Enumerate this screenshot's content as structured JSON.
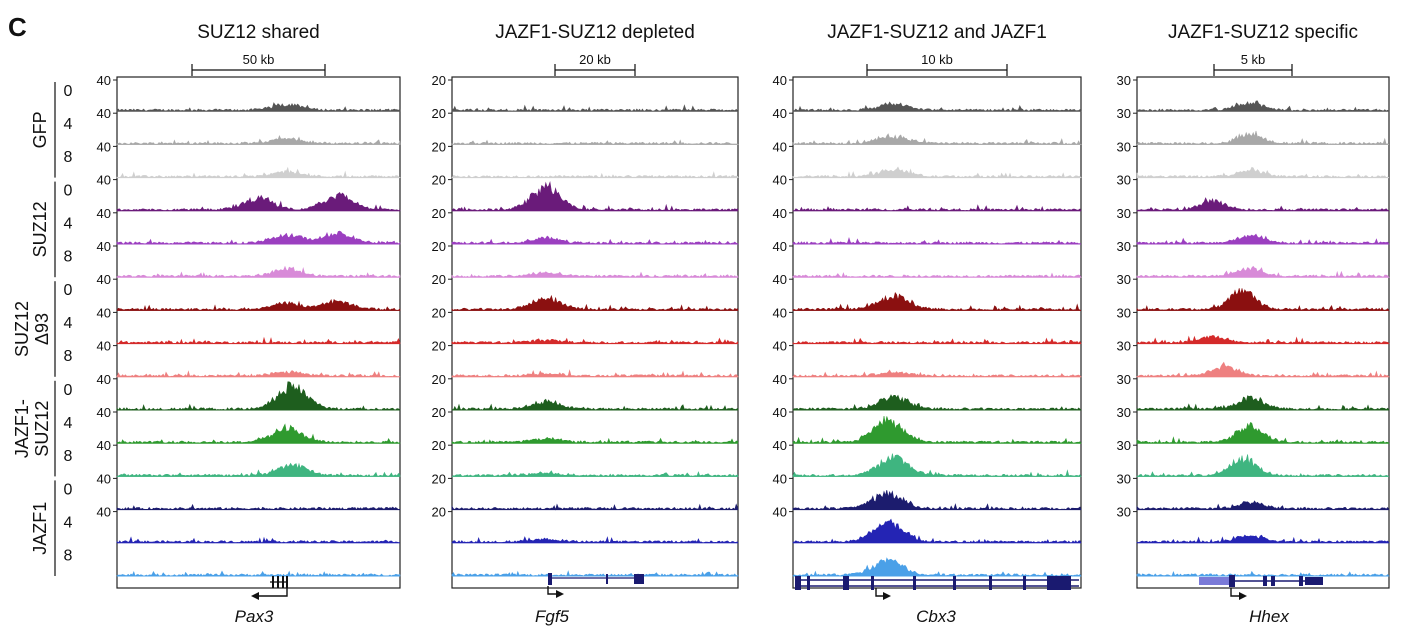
{
  "figure_label": "C",
  "row_groups": [
    {
      "name": "GFP",
      "lines": [
        "GFP"
      ],
      "hours": [
        "0",
        "4",
        "8"
      ]
    },
    {
      "name": "SUZ12",
      "lines": [
        "SUZ12"
      ],
      "hours": [
        "0",
        "4",
        "8"
      ]
    },
    {
      "name": "SUZ12 Δ93",
      "lines": [
        "SUZ12",
        "Δ93"
      ],
      "hours": [
        "0",
        "4",
        "8"
      ]
    },
    {
      "name": "JAZF1-SUZ12",
      "lines": [
        "JAZF1-",
        "SUZ12"
      ],
      "hours": [
        "0",
        "4",
        "8"
      ]
    },
    {
      "name": "JAZF1",
      "lines": [
        "JAZF1"
      ],
      "hours": [
        "0",
        "4",
        "8"
      ]
    }
  ],
  "track_colors": [
    "#555555",
    "#a8a8a8",
    "#cfcfcf",
    "#6a1b7a",
    "#9b3fc0",
    "#d88ad8",
    "#8b1010",
    "#d42a2a",
    "#ee8080",
    "#1e5e1e",
    "#2f9a2f",
    "#3fb580",
    "#1c1c6e",
    "#2424b4",
    "#4aa0e8"
  ],
  "panels": [
    {
      "title": "SUZ12 shared",
      "scale": "50 kb",
      "ymax": "40",
      "gene": "Pax3",
      "peaks": [
        [
          [
            0.6,
            0.25
          ]
        ],
        [
          [
            0.6,
            0.2
          ]
        ],
        [
          [
            0.6,
            0.2
          ]
        ],
        [
          [
            0.5,
            0.5
          ],
          [
            0.78,
            0.6
          ]
        ],
        [
          [
            0.6,
            0.35
          ],
          [
            0.78,
            0.4
          ]
        ],
        [
          [
            0.6,
            0.3
          ]
        ],
        [
          [
            0.6,
            0.25
          ],
          [
            0.78,
            0.35
          ]
        ],
        [],
        [
          [
            0.6,
            0.15
          ]
        ],
        [
          [
            0.62,
            0.95
          ]
        ],
        [
          [
            0.6,
            0.6
          ]
        ],
        [
          [
            0.62,
            0.45
          ]
        ],
        [],
        [],
        []
      ],
      "gene_model": {
        "strand": "minus"
      }
    },
    {
      "title": "JAZF1-SUZ12 depleted",
      "scale": "20 kb",
      "ymax": "20",
      "gene": "Fgf5",
      "peaks": [
        [],
        [],
        [],
        [
          [
            0.33,
            0.95
          ]
        ],
        [
          [
            0.33,
            0.2
          ]
        ],
        [
          [
            0.33,
            0.15
          ]
        ],
        [
          [
            0.33,
            0.45
          ]
        ],
        [
          [
            0.33,
            0.1
          ]
        ],
        [
          [
            0.33,
            0.1
          ]
        ],
        [
          [
            0.33,
            0.3
          ]
        ],
        [
          [
            0.33,
            0.15
          ]
        ],
        [
          [
            0.33,
            0.1
          ]
        ],
        [],
        [
          [
            0.33,
            0.1
          ]
        ],
        []
      ],
      "gene_model": {
        "strand": "plus"
      }
    },
    {
      "title": "JAZF1-SUZ12 and JAZF1",
      "scale": "10 kb",
      "ymax": "40",
      "gene": "Cbx3",
      "peaks": [
        [
          [
            0.35,
            0.25
          ]
        ],
        [
          [
            0.35,
            0.3
          ]
        ],
        [
          [
            0.35,
            0.3
          ]
        ],
        [],
        [],
        [],
        [
          [
            0.35,
            0.55
          ]
        ],
        [],
        [
          [
            0.35,
            0.15
          ]
        ],
        [
          [
            0.35,
            0.5
          ]
        ],
        [
          [
            0.33,
            0.9
          ]
        ],
        [
          [
            0.35,
            0.75
          ]
        ],
        [
          [
            0.33,
            0.6
          ]
        ],
        [
          [
            0.33,
            0.85
          ]
        ],
        [
          [
            0.33,
            0.6
          ]
        ]
      ],
      "gene_model": {
        "strand": "plus"
      }
    },
    {
      "title": "JAZF1-SUZ12 specific",
      "scale": "5 kb",
      "ymax": "30",
      "gene": "Hhex",
      "peaks": [
        [
          [
            0.45,
            0.3
          ]
        ],
        [
          [
            0.45,
            0.4
          ]
        ],
        [
          [
            0.45,
            0.3
          ]
        ],
        [
          [
            0.3,
            0.35
          ]
        ],
        [
          [
            0.45,
            0.3
          ]
        ],
        [
          [
            0.45,
            0.3
          ]
        ],
        [
          [
            0.42,
            0.75
          ]
        ],
        [
          [
            0.3,
            0.25
          ]
        ],
        [
          [
            0.35,
            0.4
          ]
        ],
        [
          [
            0.45,
            0.45
          ]
        ],
        [
          [
            0.45,
            0.7
          ]
        ],
        [
          [
            0.42,
            0.7
          ]
        ],
        [
          [
            0.45,
            0.25
          ]
        ],
        [
          [
            0.45,
            0.25
          ]
        ],
        []
      ],
      "gene_model": {
        "strand": "plus"
      }
    }
  ]
}
